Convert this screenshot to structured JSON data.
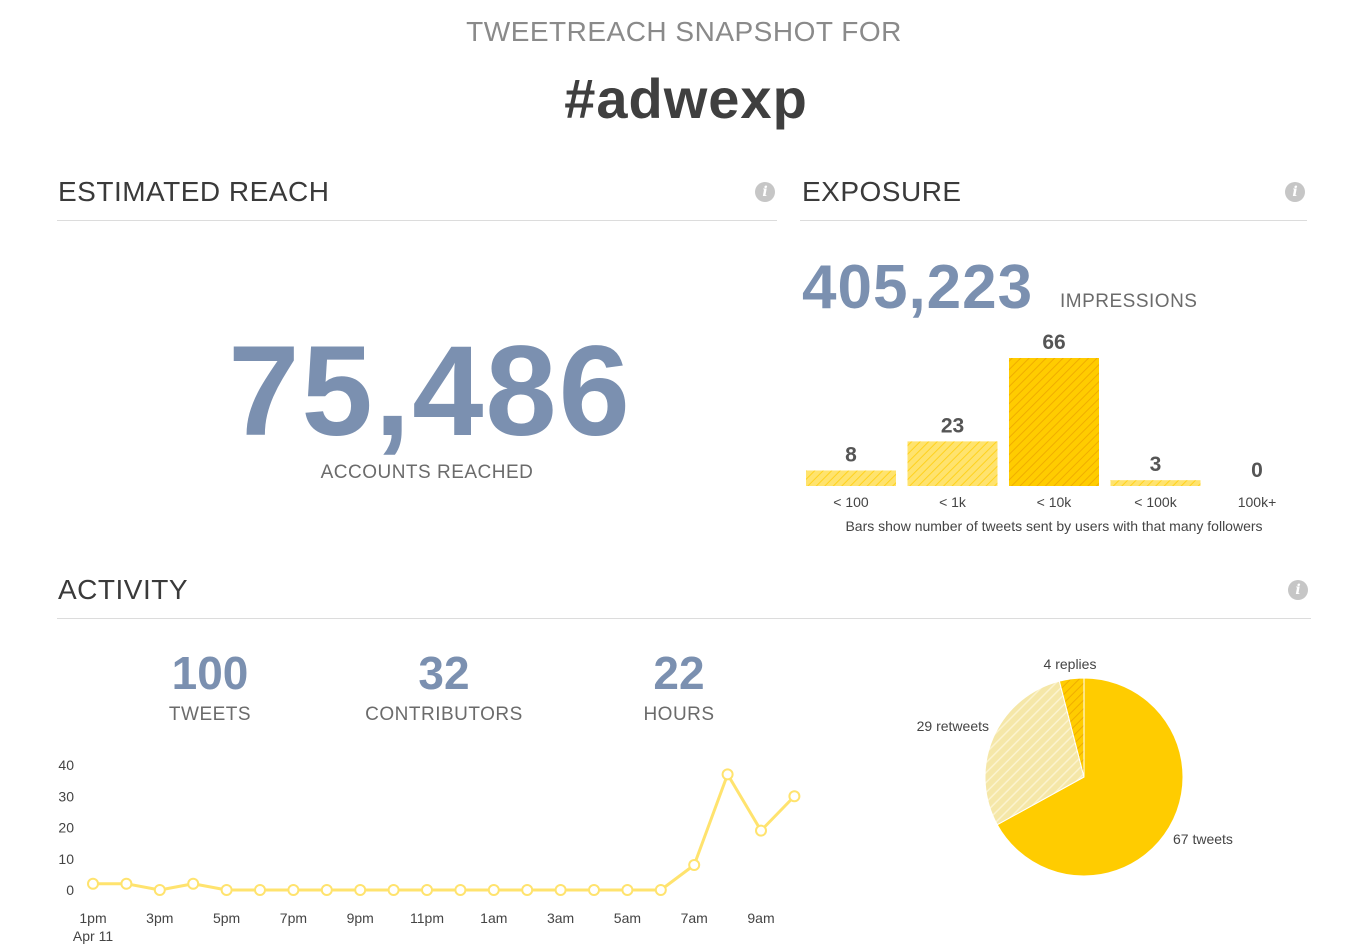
{
  "header": {
    "subtitle": "TWEETREACH SNAPSHOT FOR",
    "hashtag": "#adwexp"
  },
  "reach": {
    "title": "ESTIMATED REACH",
    "value": "75,486",
    "label": "ACCOUNTS REACHED"
  },
  "exposure": {
    "title": "EXPOSURE",
    "impressions": "405,223",
    "impressions_label": "IMPRESSIONS"
  },
  "activity": {
    "title": "ACTIVITY",
    "stats": [
      {
        "value": "100",
        "label": "TWEETS"
      },
      {
        "value": "32",
        "label": "CONTRIBUTORS"
      },
      {
        "value": "22",
        "label": "HOURS"
      }
    ]
  },
  "colors": {
    "accent_blue": "#7b90b0",
    "yellow": "#ffcc00",
    "yellow_light": "#ffe36e",
    "yellow_pale": "#f5e7a8"
  },
  "chart_data": [
    {
      "type": "bar",
      "categories": [
        "< 100",
        "< 1k",
        "< 10k",
        "< 100k",
        "100k+"
      ],
      "values": [
        8,
        23,
        66,
        3,
        0
      ],
      "caption": "Bars show number of tweets sent by users with that many followers"
    },
    {
      "type": "line",
      "x": [
        "1pm",
        "2pm",
        "3pm",
        "4pm",
        "5pm",
        "6pm",
        "7pm",
        "8pm",
        "9pm",
        "10pm",
        "11pm",
        "12am",
        "1am",
        "2am",
        "3am",
        "4am",
        "5am",
        "6am",
        "7am",
        "8am",
        "9am",
        "10am"
      ],
      "x_tick_labels": [
        "1pm",
        "3pm",
        "5pm",
        "7pm",
        "9pm",
        "11pm",
        "1am",
        "3am",
        "5am",
        "7am",
        "9am"
      ],
      "x_sublabel": "Apr 11",
      "values": [
        2,
        2,
        0,
        2,
        0,
        0,
        0,
        0,
        0,
        0,
        0,
        0,
        0,
        0,
        0,
        0,
        0,
        0,
        8,
        37,
        19,
        30
      ],
      "ylim": [
        0,
        40
      ],
      "yticks": [
        0,
        10,
        20,
        30,
        40
      ]
    },
    {
      "type": "pie",
      "slices": [
        {
          "label": "67 tweets",
          "value": 67
        },
        {
          "label": "29 retweets",
          "value": 29
        },
        {
          "label": "4 replies",
          "value": 4
        }
      ]
    }
  ]
}
